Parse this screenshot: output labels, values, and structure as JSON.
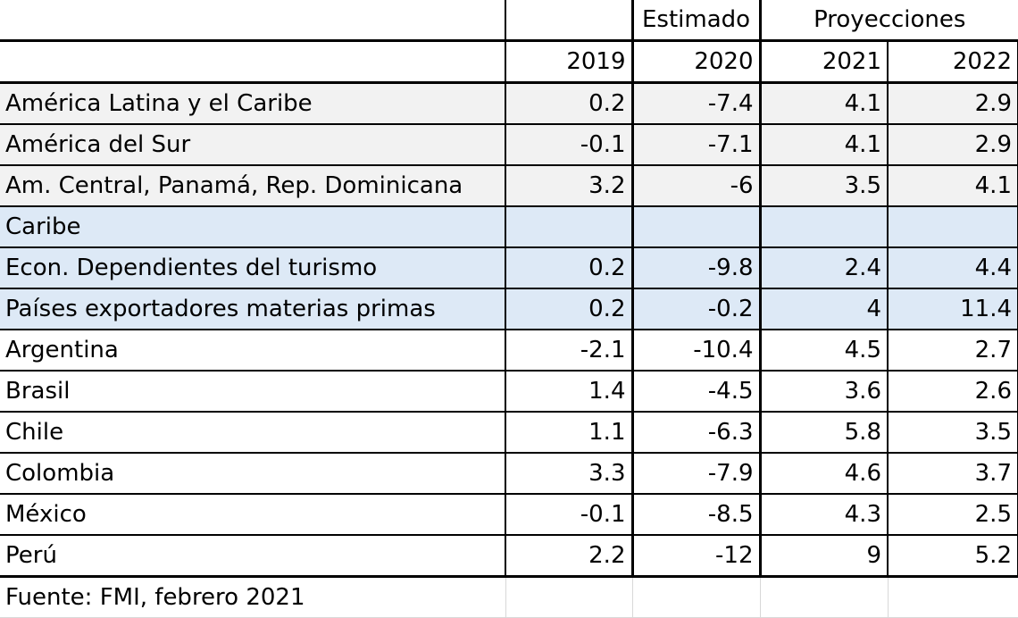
{
  "header": {
    "group_estimated": "Estimado",
    "group_projections": "Proyecciones",
    "years": [
      "2019",
      "2020",
      "2021",
      "2022"
    ]
  },
  "rows": [
    {
      "label": "América Latina y el Caribe",
      "v": [
        "0.2",
        "-7.4",
        "4.1",
        "2.9"
      ],
      "style": "grey"
    },
    {
      "label": "América del Sur",
      "v": [
        "-0.1",
        "-7.1",
        "4.1",
        "2.9"
      ],
      "style": "grey"
    },
    {
      "label": "Am. Central, Panamá, Rep. Dominicana",
      "v": [
        "3.2",
        "-6",
        "3.5",
        "4.1"
      ],
      "style": "grey"
    },
    {
      "label": "Caribe",
      "v": [
        "",
        "",
        "",
        ""
      ],
      "style": "blue"
    },
    {
      "label": "Econ. Dependientes del turismo",
      "v": [
        "0.2",
        "-9.8",
        "2.4",
        "4.4"
      ],
      "style": "blue"
    },
    {
      "label": "Países exportadores materias primas",
      "v": [
        "0.2",
        "-0.2",
        "4",
        "11.4"
      ],
      "style": "blue"
    },
    {
      "label": "Argentina",
      "v": [
        "-2.1",
        "-10.4",
        "4.5",
        "2.7"
      ],
      "style": "white"
    },
    {
      "label": "Brasil",
      "v": [
        "1.4",
        "-4.5",
        "3.6",
        "2.6"
      ],
      "style": "white"
    },
    {
      "label": "Chile",
      "v": [
        "1.1",
        "-6.3",
        "5.8",
        "3.5"
      ],
      "style": "white"
    },
    {
      "label": "Colombia",
      "v": [
        "3.3",
        "-7.9",
        "4.6",
        "3.7"
      ],
      "style": "white"
    },
    {
      "label": "México",
      "v": [
        "-0.1",
        "-8.5",
        "4.3",
        "2.5"
      ],
      "style": "white"
    },
    {
      "label": "Perú",
      "v": [
        "2.2",
        "-12",
        "9",
        "5.2"
      ],
      "style": "white"
    }
  ],
  "footer": {
    "source": "Fuente: FMI, febrero 2021"
  }
}
